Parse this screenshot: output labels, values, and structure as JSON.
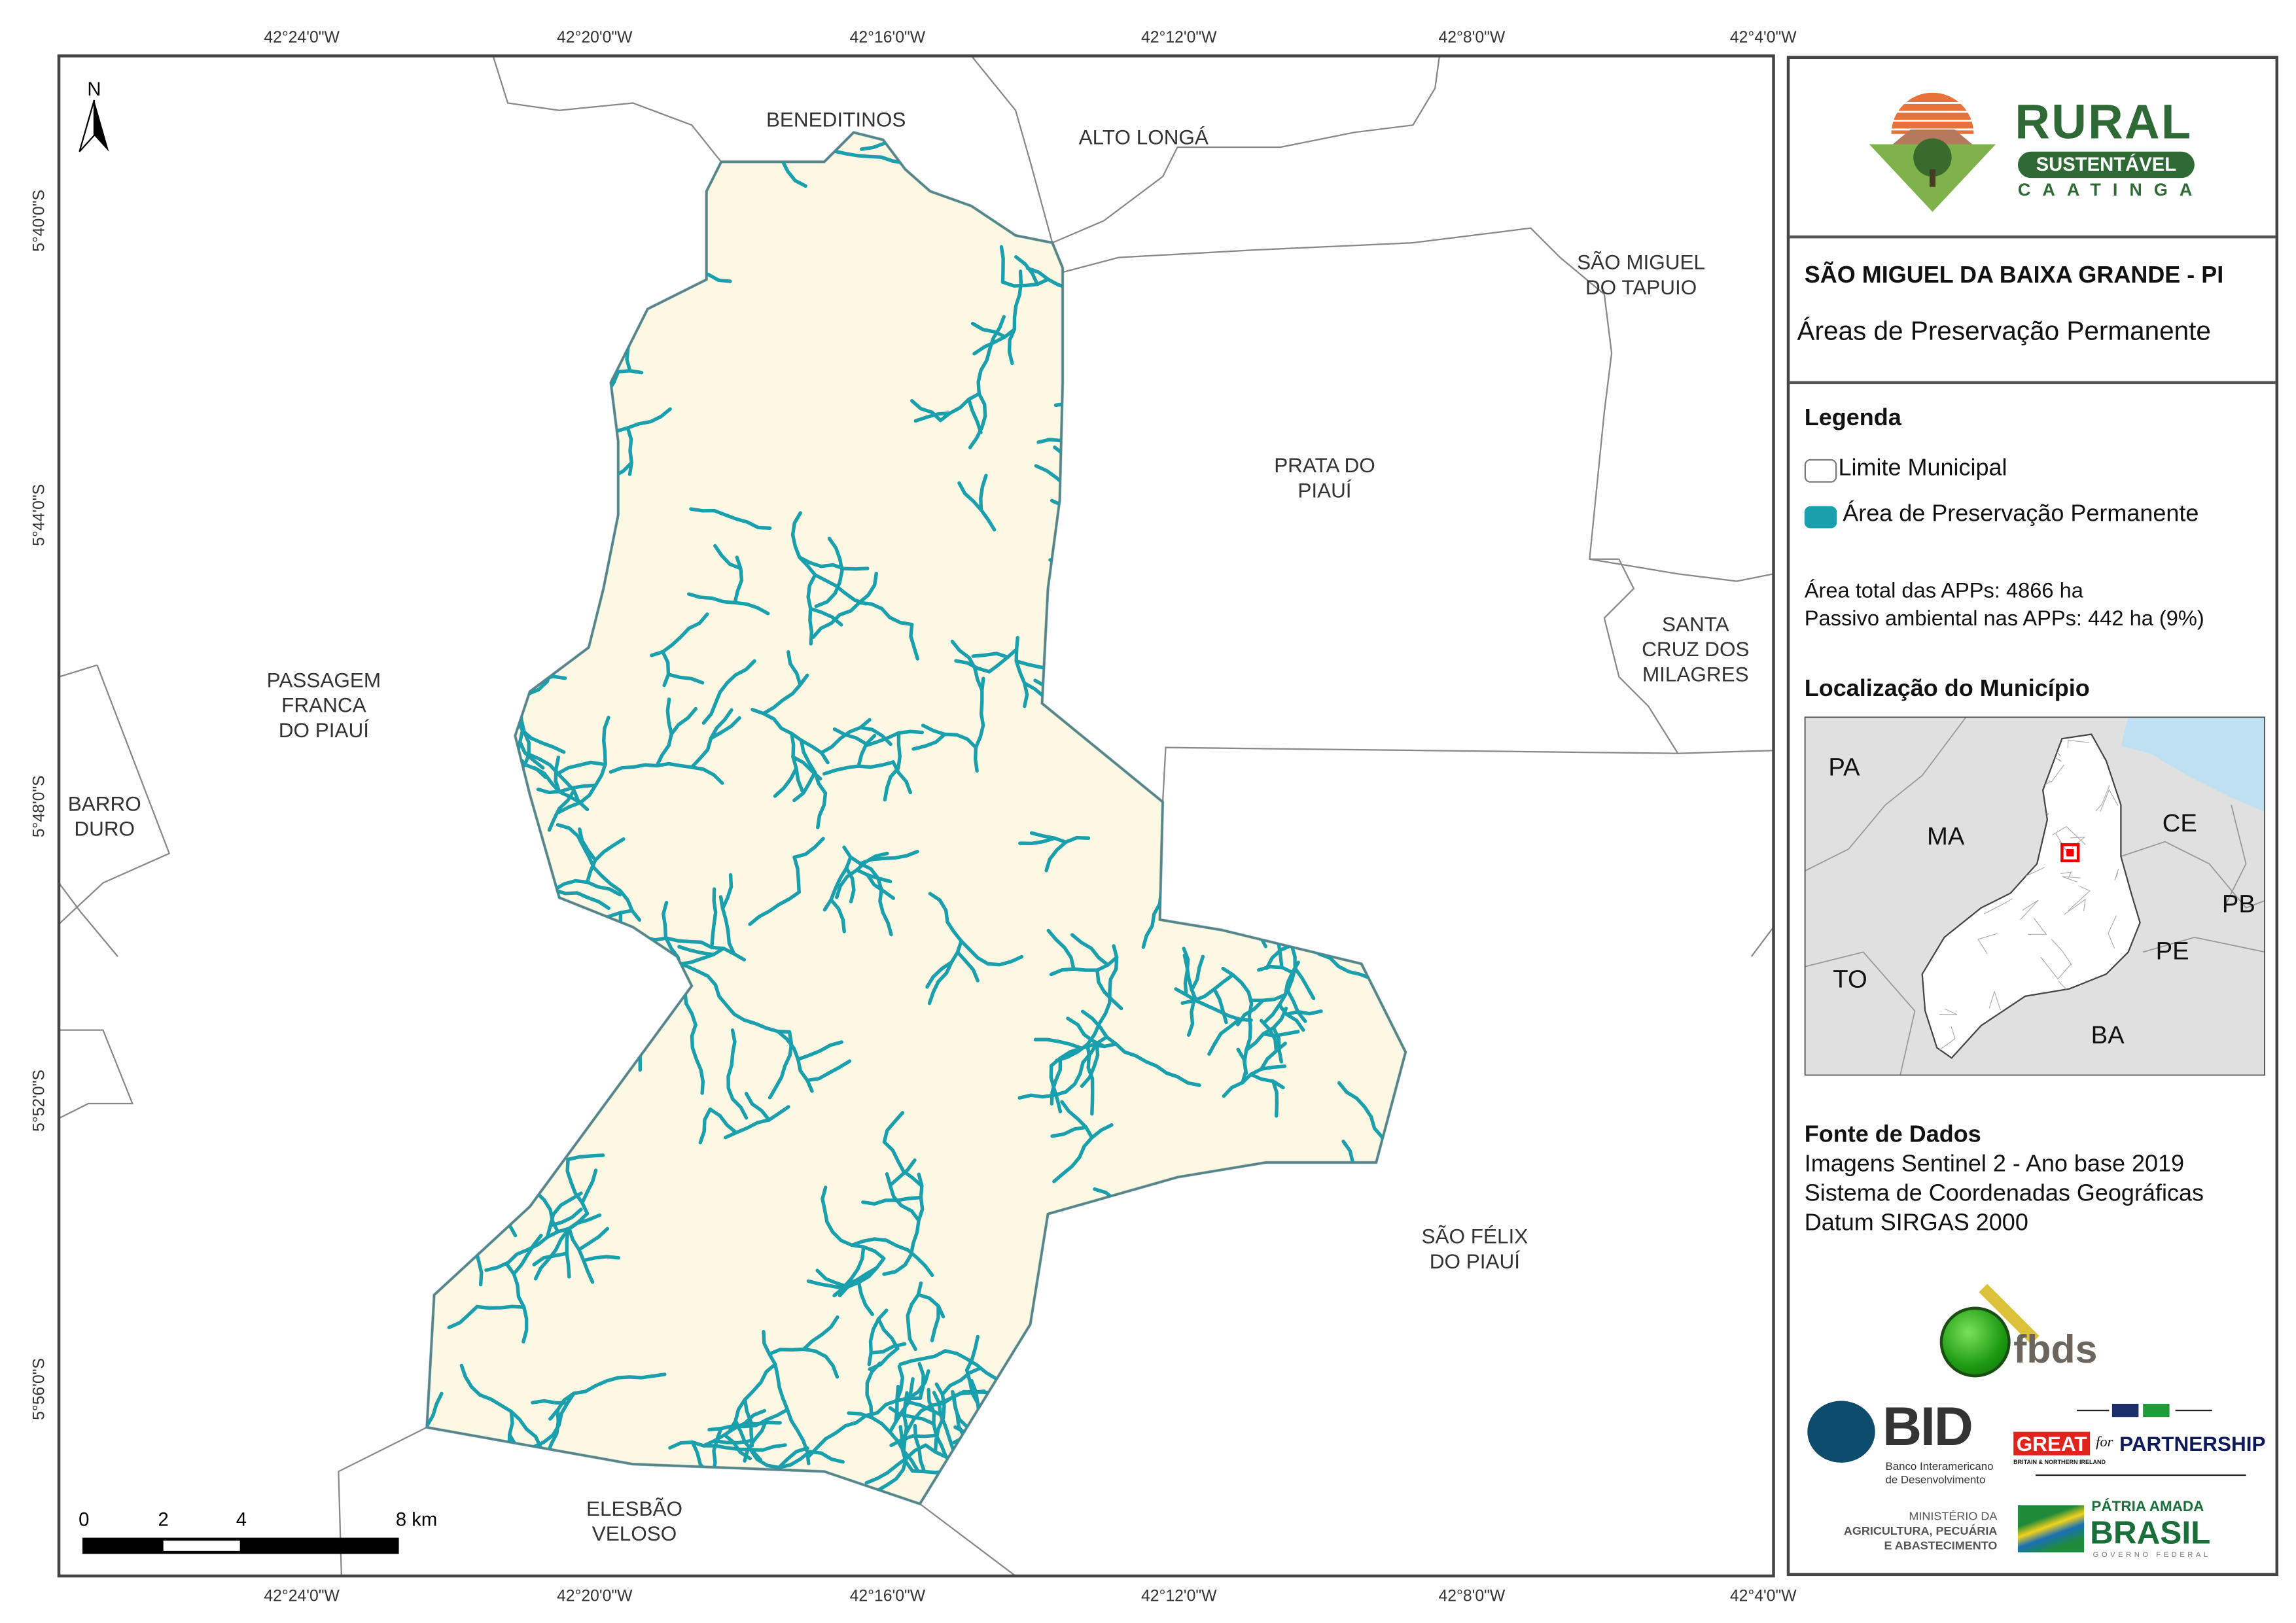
{
  "map": {
    "north_label": "N",
    "colors": {
      "municipality_fill": "#fdf8e4",
      "app": "#1a9fad",
      "boundary": "#777777",
      "ocean": "#bfe0f2",
      "inset_land": "#e0e0e0"
    },
    "longitude_ticks": [
      "42°24'0\"W",
      "42°20'0\"W",
      "42°16'0\"W",
      "42°12'0\"W",
      "42°8'0\"W",
      "42°4'0\"W"
    ],
    "latitude_ticks": [
      "5°40'0\"S",
      "5°44'0\"S",
      "5°48'0\"S",
      "5°52'0\"S",
      "5°56'0\"S"
    ],
    "neighbors": [
      {
        "lines": [
          "BENEDITINOS"
        ]
      },
      {
        "lines": [
          "ALTO LONGÁ"
        ]
      },
      {
        "lines": [
          "SÃO MIGUEL",
          "DO TAPUIO"
        ]
      },
      {
        "lines": [
          "PRATA DO",
          "PIAUÍ"
        ]
      },
      {
        "lines": [
          "SANTA",
          "CRUZ DOS",
          "MILAGRES"
        ]
      },
      {
        "lines": [
          "PASSAGEM",
          "FRANCA",
          "DO PIAUÍ"
        ]
      },
      {
        "lines": [
          "BARRO",
          "DURO"
        ]
      },
      {
        "lines": [
          "SÃO FÉLIX",
          "DO PIAUÍ"
        ]
      },
      {
        "lines": [
          "ELESBÃO",
          "VELOSO"
        ]
      }
    ],
    "scale_bar": {
      "labels": [
        "0",
        "2",
        "4",
        "8 km"
      ]
    }
  },
  "panel": {
    "logo": {
      "word1": "RURAL",
      "word2": "SUSTENTÁVEL",
      "word3": "CAATINGA"
    },
    "title": "SÃO MIGUEL DA BAIXA GRANDE - PI",
    "subtitle": "Áreas de Preservação Permanente",
    "legend": {
      "heading": "Legenda",
      "items": [
        {
          "label": "Limite Municipal",
          "symbol": "outline"
        },
        {
          "label": "Área de Preservação Permanente",
          "symbol": "teal-fill"
        }
      ]
    },
    "stats": {
      "total_label": "Área total das APPs:",
      "total_value": "4866 ha",
      "passivo_label": "Passivo ambiental nas APPs:",
      "passivo_value": "442 ha (9%)"
    },
    "location": {
      "heading": "Localização do Município",
      "states": [
        "PA",
        "MA",
        "CE",
        "PB",
        "PE",
        "TO",
        "BA"
      ]
    },
    "sources": {
      "heading": "Fonte de Dados",
      "lines": [
        "Imagens Sentinel 2 - Ano base 2019",
        "Sistema de Coordenadas Geográficas",
        "Datum SIRGAS 2000"
      ]
    },
    "partners": {
      "fbds": "fbds",
      "bid": "BID",
      "bid_sub1": "Banco Interamericano",
      "bid_sub2": "de Desenvolvimento",
      "great": "GREAT",
      "great_sub": "BRITAIN & NORTHERN IRELAND",
      "for": "for",
      "partnership": "PARTNERSHIP",
      "ministry1": "MINISTÉRIO DA",
      "ministry2": "AGRICULTURA, PECUÁRIA",
      "ministry3": "E ABASTECIMENTO",
      "brasil1": "PÁTRIA AMADA",
      "brasil2": "BRASIL",
      "brasil3": "GOVERNO FEDERAL"
    }
  }
}
